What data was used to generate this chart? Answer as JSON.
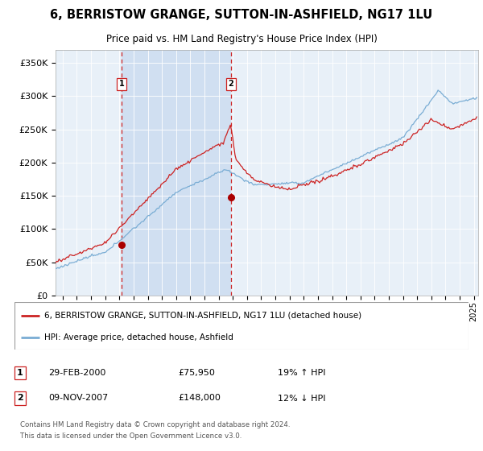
{
  "title": "6, BERRISTOW GRANGE, SUTTON-IN-ASHFIELD, NG17 1LU",
  "subtitle": "Price paid vs. HM Land Registry's House Price Index (HPI)",
  "legend_line1": "6, BERRISTOW GRANGE, SUTTON-IN-ASHFIELD, NG17 1LU (detached house)",
  "legend_line2": "HPI: Average price, detached house, Ashfield",
  "footnote1": "Contains HM Land Registry data © Crown copyright and database right 2024.",
  "footnote2": "This data is licensed under the Open Government Licence v3.0.",
  "transaction1_date": "29-FEB-2000",
  "transaction1_price": "£75,950",
  "transaction1_hpi": "19% ↑ HPI",
  "transaction1_year": 2000.16,
  "transaction1_value": 75950,
  "transaction2_date": "09-NOV-2007",
  "transaction2_price": "£148,000",
  "transaction2_hpi": "12% ↓ HPI",
  "transaction2_year": 2007.86,
  "transaction2_value": 148000,
  "hpi_color": "#7aadd4",
  "price_color": "#cc2222",
  "marker_color": "#aa0000",
  "vline_color": "#cc2222",
  "shade_color": "#ccddf0",
  "background_color": "#e8f0f8",
  "ylim": [
    0,
    370000
  ],
  "yticks": [
    0,
    50000,
    100000,
    150000,
    200000,
    250000,
    300000,
    350000
  ],
  "xstart": 1995.5,
  "xend": 2025.3
}
